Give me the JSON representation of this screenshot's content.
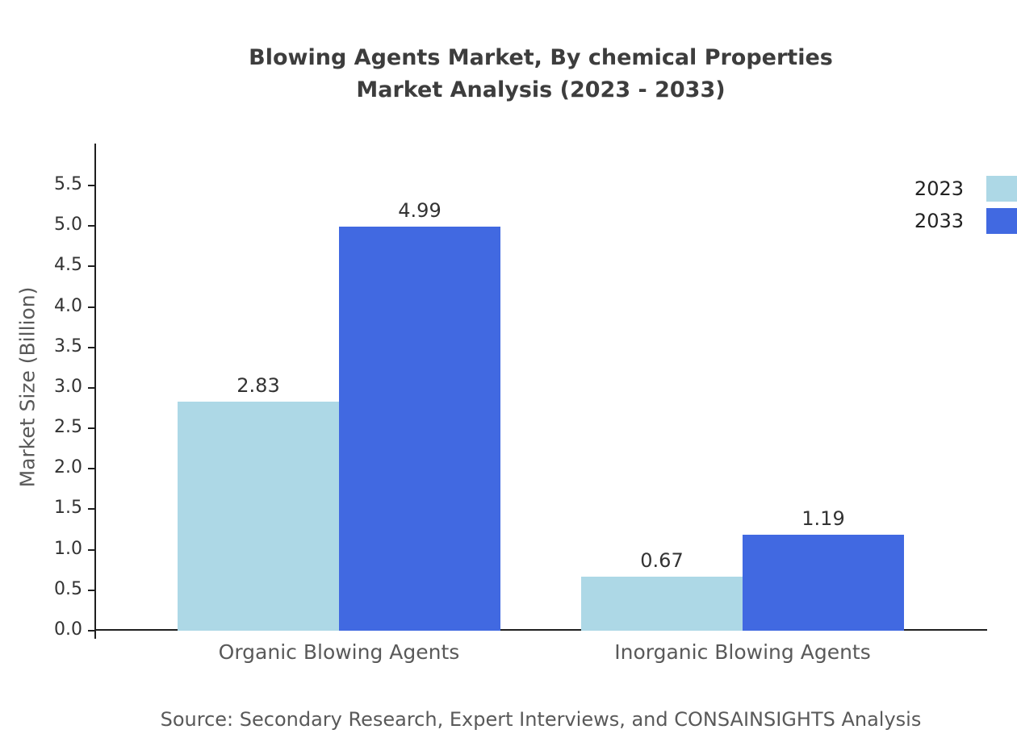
{
  "title": {
    "line1": "Blowing Agents Market, By chemical Properties",
    "line2": "Market Analysis (2023 - 2033)"
  },
  "source": "Source: Secondary Research, Expert Interviews, and CONSAINSIGHTS Analysis",
  "chart_data": {
    "type": "bar",
    "title": "Blowing Agents Market, By chemical Properties Market Analysis (2023 - 2033)",
    "categories": [
      "Organic Blowing Agents",
      "Inorganic Blowing Agents"
    ],
    "series": [
      {
        "name": "2023",
        "color": "#add8e6",
        "values": [
          2.83,
          0.67
        ]
      },
      {
        "name": "2033",
        "color": "#4169e1",
        "values": [
          4.99,
          1.19
        ]
      }
    ],
    "xlabel": "",
    "ylabel": "Market Size (Billion)",
    "ylim": [
      0,
      5.5
    ],
    "ytick_step": 0.5,
    "grid": false,
    "legend_position": "top-right",
    "value_labels": true
  }
}
